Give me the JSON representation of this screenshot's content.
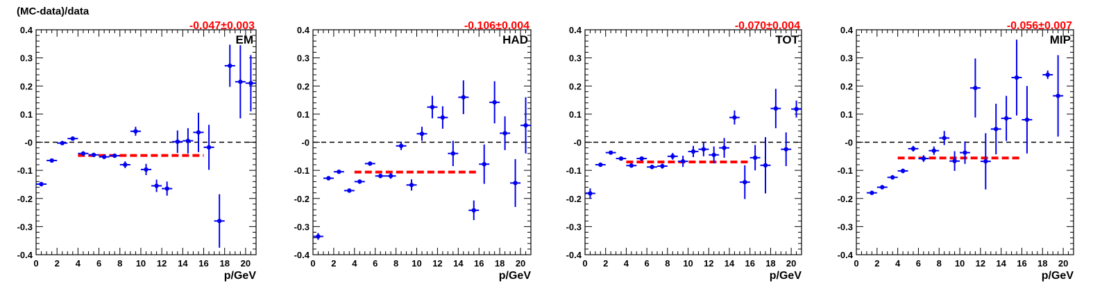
{
  "figure": {
    "ylabel": "(MC-data)/data",
    "xlabel": "p/GeV"
  },
  "chart_data": [
    {
      "type": "scatter",
      "panel": "EM",
      "fit_label": "-0.047±0.003",
      "fit_value": -0.047,
      "fit_xrange": [
        4,
        16
      ],
      "xlabel": "p/GeV",
      "ylabel": "(MC-data)/data",
      "xlim": [
        0,
        21
      ],
      "ylim": [
        -0.4,
        0.4
      ],
      "xticks": [
        0,
        2,
        4,
        6,
        8,
        10,
        12,
        14,
        16,
        18,
        20
      ],
      "yticks": [
        -0.4,
        -0.3,
        -0.2,
        -0.1,
        0,
        0.1,
        0.2,
        0.3,
        0.4
      ],
      "ytick_labels": [
        "-0.4",
        "-0.3",
        "-0.2",
        "-0.1",
        "-0",
        "0.1",
        "0.2",
        "0.3",
        "0.4"
      ],
      "reference_line": 0,
      "points": [
        {
          "x": 0.5,
          "y": -0.149,
          "err": 0.008
        },
        {
          "x": 1.5,
          "y": -0.065,
          "err": 0.005
        },
        {
          "x": 2.5,
          "y": -0.003,
          "err": 0.004
        },
        {
          "x": 3.5,
          "y": 0.013,
          "err": 0.006
        },
        {
          "x": 4.5,
          "y": -0.04,
          "err": 0.005
        },
        {
          "x": 5.5,
          "y": -0.045,
          "err": 0.005
        },
        {
          "x": 6.5,
          "y": -0.052,
          "err": 0.005
        },
        {
          "x": 7.5,
          "y": -0.048,
          "err": 0.006
        },
        {
          "x": 8.5,
          "y": -0.08,
          "err": 0.012
        },
        {
          "x": 9.5,
          "y": 0.039,
          "err": 0.016
        },
        {
          "x": 10.5,
          "y": -0.097,
          "err": 0.02
        },
        {
          "x": 11.5,
          "y": -0.155,
          "err": 0.022
        },
        {
          "x": 12.5,
          "y": -0.165,
          "err": 0.025
        },
        {
          "x": 13.5,
          "y": 0.002,
          "err": 0.04
        },
        {
          "x": 14.5,
          "y": 0.005,
          "err": 0.045
        },
        {
          "x": 15.5,
          "y": 0.035,
          "err": 0.07
        },
        {
          "x": 16.5,
          "y": -0.018,
          "err": 0.08
        },
        {
          "x": 17.5,
          "y": -0.28,
          "err": 0.095
        },
        {
          "x": 18.5,
          "y": 0.272,
          "err": 0.075
        },
        {
          "x": 19.5,
          "y": 0.215,
          "err": 0.13
        },
        {
          "x": 20.5,
          "y": 0.21,
          "err": 0.1
        }
      ]
    },
    {
      "type": "scatter",
      "panel": "HAD",
      "fit_label": "-0.106±0.004",
      "fit_value": -0.106,
      "fit_xrange": [
        4,
        16
      ],
      "xlabel": "p/GeV",
      "ylabel": "",
      "xlim": [
        0,
        21
      ],
      "ylim": [
        -0.4,
        0.4
      ],
      "xticks": [
        0,
        2,
        4,
        6,
        8,
        10,
        12,
        14,
        16,
        18,
        20
      ],
      "yticks": [
        -0.4,
        -0.3,
        -0.2,
        -0.1,
        0,
        0.1,
        0.2,
        0.3,
        0.4
      ],
      "ytick_labels": [
        "-0.4",
        "-0.3",
        "-0.2",
        "-0.1",
        "-0",
        "0.1",
        "0.2",
        "0.3",
        "0.4"
      ],
      "reference_line": 0,
      "points": [
        {
          "x": 0.5,
          "y": -0.335,
          "err": 0.012
        },
        {
          "x": 1.5,
          "y": -0.128,
          "err": 0.005
        },
        {
          "x": 2.5,
          "y": -0.105,
          "err": 0.005
        },
        {
          "x": 3.5,
          "y": -0.172,
          "err": 0.005
        },
        {
          "x": 4.5,
          "y": -0.14,
          "err": 0.006
        },
        {
          "x": 5.5,
          "y": -0.076,
          "err": 0.006
        },
        {
          "x": 6.5,
          "y": -0.12,
          "err": 0.008
        },
        {
          "x": 7.5,
          "y": -0.12,
          "err": 0.01
        },
        {
          "x": 8.5,
          "y": -0.013,
          "err": 0.015
        },
        {
          "x": 9.5,
          "y": -0.152,
          "err": 0.02
        },
        {
          "x": 10.5,
          "y": 0.03,
          "err": 0.025
        },
        {
          "x": 11.5,
          "y": 0.125,
          "err": 0.04
        },
        {
          "x": 12.5,
          "y": 0.088,
          "err": 0.04
        },
        {
          "x": 13.5,
          "y": -0.04,
          "err": 0.045
        },
        {
          "x": 14.5,
          "y": 0.16,
          "err": 0.06
        },
        {
          "x": 15.5,
          "y": -0.242,
          "err": 0.035
        },
        {
          "x": 16.5,
          "y": -0.078,
          "err": 0.07
        },
        {
          "x": 17.5,
          "y": 0.142,
          "err": 0.075
        },
        {
          "x": 18.5,
          "y": 0.032,
          "err": 0.06
        },
        {
          "x": 19.5,
          "y": -0.145,
          "err": 0.085
        },
        {
          "x": 20.5,
          "y": 0.06,
          "err": 0.1
        }
      ]
    },
    {
      "type": "scatter",
      "panel": "TOT",
      "fit_label": "-0.070±0.004",
      "fit_value": -0.07,
      "fit_xrange": [
        4,
        16
      ],
      "xlabel": "p/GeV",
      "ylabel": "",
      "xlim": [
        0,
        21
      ],
      "ylim": [
        -0.4,
        0.4
      ],
      "xticks": [
        0,
        2,
        4,
        6,
        8,
        10,
        12,
        14,
        16,
        18,
        20
      ],
      "yticks": [
        -0.4,
        -0.3,
        -0.2,
        -0.1,
        0,
        0.1,
        0.2,
        0.3,
        0.4
      ],
      "ytick_labels": [
        "-0.4",
        "-0.3",
        "-0.2",
        "-0.1",
        "-0",
        "0.1",
        "0.2",
        "0.3",
        "0.4"
      ],
      "reference_line": 0,
      "points": [
        {
          "x": 0.5,
          "y": -0.182,
          "err": 0.018
        },
        {
          "x": 1.5,
          "y": -0.08,
          "err": 0.006
        },
        {
          "x": 2.5,
          "y": -0.037,
          "err": 0.004
        },
        {
          "x": 3.5,
          "y": -0.058,
          "err": 0.005
        },
        {
          "x": 4.5,
          "y": -0.083,
          "err": 0.006
        },
        {
          "x": 5.5,
          "y": -0.058,
          "err": 0.006
        },
        {
          "x": 6.5,
          "y": -0.088,
          "err": 0.007
        },
        {
          "x": 7.5,
          "y": -0.085,
          "err": 0.009
        },
        {
          "x": 8.5,
          "y": -0.05,
          "err": 0.012
        },
        {
          "x": 9.5,
          "y": -0.068,
          "err": 0.02
        },
        {
          "x": 10.5,
          "y": -0.033,
          "err": 0.02
        },
        {
          "x": 11.5,
          "y": -0.025,
          "err": 0.025
        },
        {
          "x": 12.5,
          "y": -0.045,
          "err": 0.03
        },
        {
          "x": 13.5,
          "y": -0.02,
          "err": 0.035
        },
        {
          "x": 14.5,
          "y": 0.088,
          "err": 0.025
        },
        {
          "x": 15.5,
          "y": -0.142,
          "err": 0.06
        },
        {
          "x": 16.5,
          "y": -0.055,
          "err": 0.045
        },
        {
          "x": 17.5,
          "y": -0.082,
          "err": 0.1
        },
        {
          "x": 18.5,
          "y": 0.12,
          "err": 0.07
        },
        {
          "x": 19.5,
          "y": -0.025,
          "err": 0.06
        },
        {
          "x": 20.5,
          "y": 0.118,
          "err": 0.03
        }
      ]
    },
    {
      "type": "scatter",
      "panel": "MIP",
      "fit_label": "-0.056±0.007",
      "fit_value": -0.056,
      "fit_xrange": [
        4,
        16
      ],
      "xlabel": "p/GeV",
      "ylabel": "",
      "xlim": [
        0,
        21
      ],
      "ylim": [
        -0.4,
        0.4
      ],
      "xticks": [
        0,
        2,
        4,
        6,
        8,
        10,
        12,
        14,
        16,
        18,
        20
      ],
      "yticks": [
        -0.4,
        -0.3,
        -0.2,
        -0.1,
        0,
        0.1,
        0.2,
        0.3,
        0.4
      ],
      "ytick_labels": [
        "-0.4",
        "-0.3",
        "-0.2",
        "-0.1",
        "-0",
        "0.1",
        "0.2",
        "0.3",
        "0.4"
      ],
      "reference_line": 0,
      "points": [
        {
          "x": 1.5,
          "y": -0.18,
          "err": 0.006
        },
        {
          "x": 2.5,
          "y": -0.16,
          "err": 0.007
        },
        {
          "x": 3.5,
          "y": -0.125,
          "err": 0.008
        },
        {
          "x": 4.5,
          "y": -0.102,
          "err": 0.008
        },
        {
          "x": 5.5,
          "y": -0.023,
          "err": 0.01
        },
        {
          "x": 6.5,
          "y": -0.058,
          "err": 0.012
        },
        {
          "x": 7.5,
          "y": -0.03,
          "err": 0.015
        },
        {
          "x": 8.5,
          "y": 0.015,
          "err": 0.025
        },
        {
          "x": 9.5,
          "y": -0.067,
          "err": 0.035
        },
        {
          "x": 10.5,
          "y": -0.037,
          "err": 0.04
        },
        {
          "x": 11.5,
          "y": 0.193,
          "err": 0.105
        },
        {
          "x": 12.5,
          "y": -0.068,
          "err": 0.1
        },
        {
          "x": 13.5,
          "y": 0.047,
          "err": 0.09
        },
        {
          "x": 14.5,
          "y": 0.085,
          "err": 0.08
        },
        {
          "x": 15.5,
          "y": 0.23,
          "err": 0.135
        },
        {
          "x": 16.5,
          "y": 0.08,
          "err": 0.12
        },
        {
          "x": 18.5,
          "y": 0.24,
          "err": 0.015
        },
        {
          "x": 19.5,
          "y": 0.165,
          "err": 0.145
        }
      ]
    }
  ]
}
